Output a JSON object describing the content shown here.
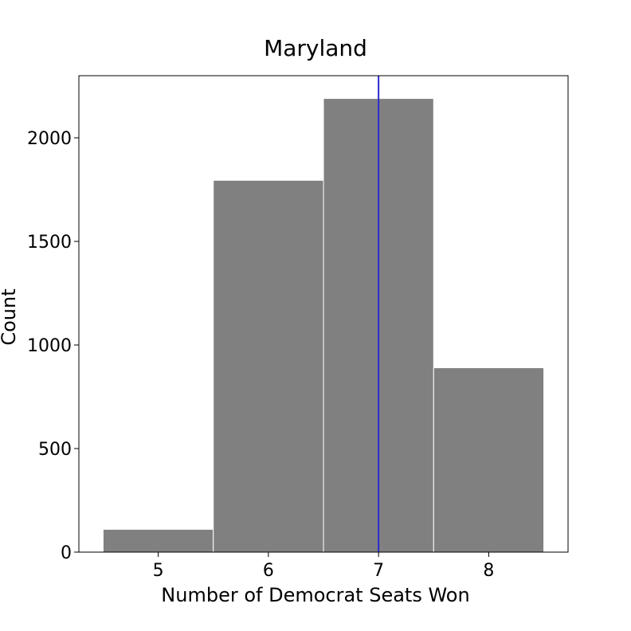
{
  "chart_data": {
    "type": "bar",
    "title": "Maryland",
    "xlabel": "Number of Democrat Seats Won",
    "ylabel": "Count",
    "categories": [
      5,
      6,
      7,
      8
    ],
    "values": [
      110,
      1795,
      2190,
      890
    ],
    "xlim": [
      4.28,
      8.72
    ],
    "ylim": [
      0,
      2300
    ],
    "xticks": [
      5,
      6,
      7,
      8
    ],
    "yticks": [
      0,
      500,
      1000,
      1500,
      2000
    ],
    "reference_line": {
      "x": 7,
      "color": "#2b2bcc"
    },
    "bar_color": "#808080",
    "bar_edge_color": "#ffffff",
    "grid": false,
    "legend": "none"
  }
}
